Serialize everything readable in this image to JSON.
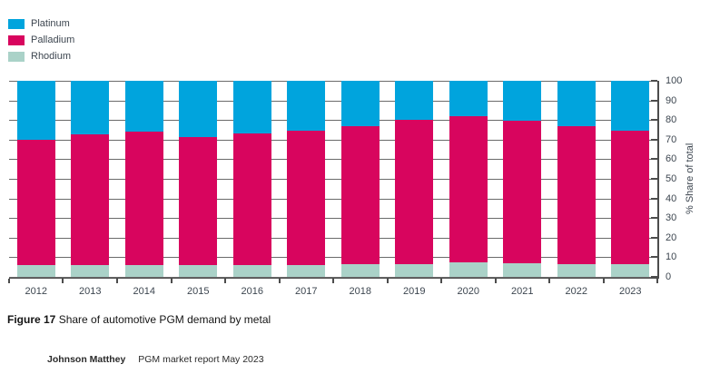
{
  "legend": {
    "items": [
      {
        "label": "Platinum",
        "color": "#00a4dd"
      },
      {
        "label": "Palladium",
        "color": "#d8055e"
      },
      {
        "label": "Rhodium",
        "color": "#aad2c8"
      }
    ]
  },
  "chart_data": {
    "type": "bar",
    "stacked": true,
    "title": "Share of automotive PGM demand by metal",
    "categories": [
      "2012",
      "2013",
      "2014",
      "2015",
      "2016",
      "2017",
      "2018",
      "2019",
      "2020",
      "2021",
      "2022",
      "2023"
    ],
    "series": [
      {
        "name": "Platinum",
        "color": "#00a4dd",
        "values": [
          30,
          27.5,
          26,
          28.5,
          27,
          25.5,
          23,
          20,
          18,
          20.5,
          23,
          25.5
        ]
      },
      {
        "name": "Palladium",
        "color": "#d8055e",
        "values": [
          64,
          66.5,
          68,
          65.5,
          67,
          68.5,
          70.5,
          73.5,
          74.5,
          72.5,
          70.5,
          68
        ]
      },
      {
        "name": "Rhodium",
        "color": "#aad2c8",
        "values": [
          6,
          6,
          6,
          6,
          6,
          6,
          6.5,
          6.5,
          7.5,
          7,
          6.5,
          6.5
        ]
      }
    ],
    "xlabel": "",
    "ylabel": "% Share of total",
    "ylim": [
      0,
      100
    ],
    "yticks": [
      0,
      10,
      20,
      30,
      40,
      50,
      60,
      70,
      80,
      90,
      100
    ],
    "grid": true,
    "legend_position": "top-left",
    "axis_color": "#4c4c4c",
    "grid_color": "#6a6a6a"
  },
  "caption": {
    "prefix": "Figure 17",
    "text": "Share of automotive PGM demand by metal"
  },
  "source": {
    "publisher": "Johnson Matthey",
    "text": "PGM market report May 2023"
  }
}
